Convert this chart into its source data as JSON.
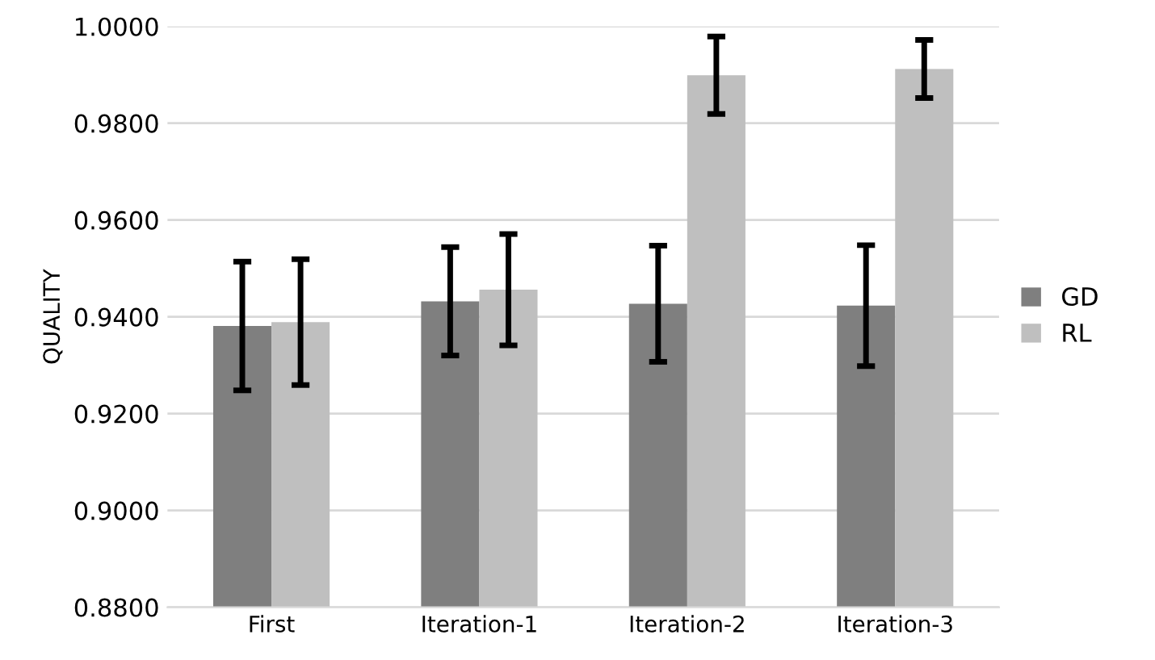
{
  "chart_data": {
    "type": "bar",
    "ylabel": "QUALITY",
    "categories": [
      "First",
      "Iteration-1",
      "Iteration-2",
      "Iteration-3"
    ],
    "series": [
      {
        "name": "GD",
        "color": "#7f7f7f",
        "values": [
          0.9381,
          0.9432,
          0.9427,
          0.9423
        ],
        "errors": [
          0.0133,
          0.0112,
          0.012,
          0.0125
        ]
      },
      {
        "name": "RL",
        "color": "#bfbfbf",
        "values": [
          0.9389,
          0.9456,
          0.9899,
          0.9912
        ],
        "errors": [
          0.013,
          0.0115,
          0.008,
          0.006
        ]
      }
    ],
    "ylim": [
      0.88,
      1.0
    ],
    "yticks": [
      {
        "value": 0.88,
        "label": "0.8800"
      },
      {
        "value": 0.9,
        "label": "0.9000"
      },
      {
        "value": 0.92,
        "label": "0.9200"
      },
      {
        "value": 0.94,
        "label": "0.9400"
      },
      {
        "value": 0.96,
        "label": "0.9600"
      },
      {
        "value": 0.98,
        "label": "0.9800"
      },
      {
        "value": 1.0,
        "label": "1.0000"
      }
    ],
    "grid": "y",
    "legend": "right"
  }
}
